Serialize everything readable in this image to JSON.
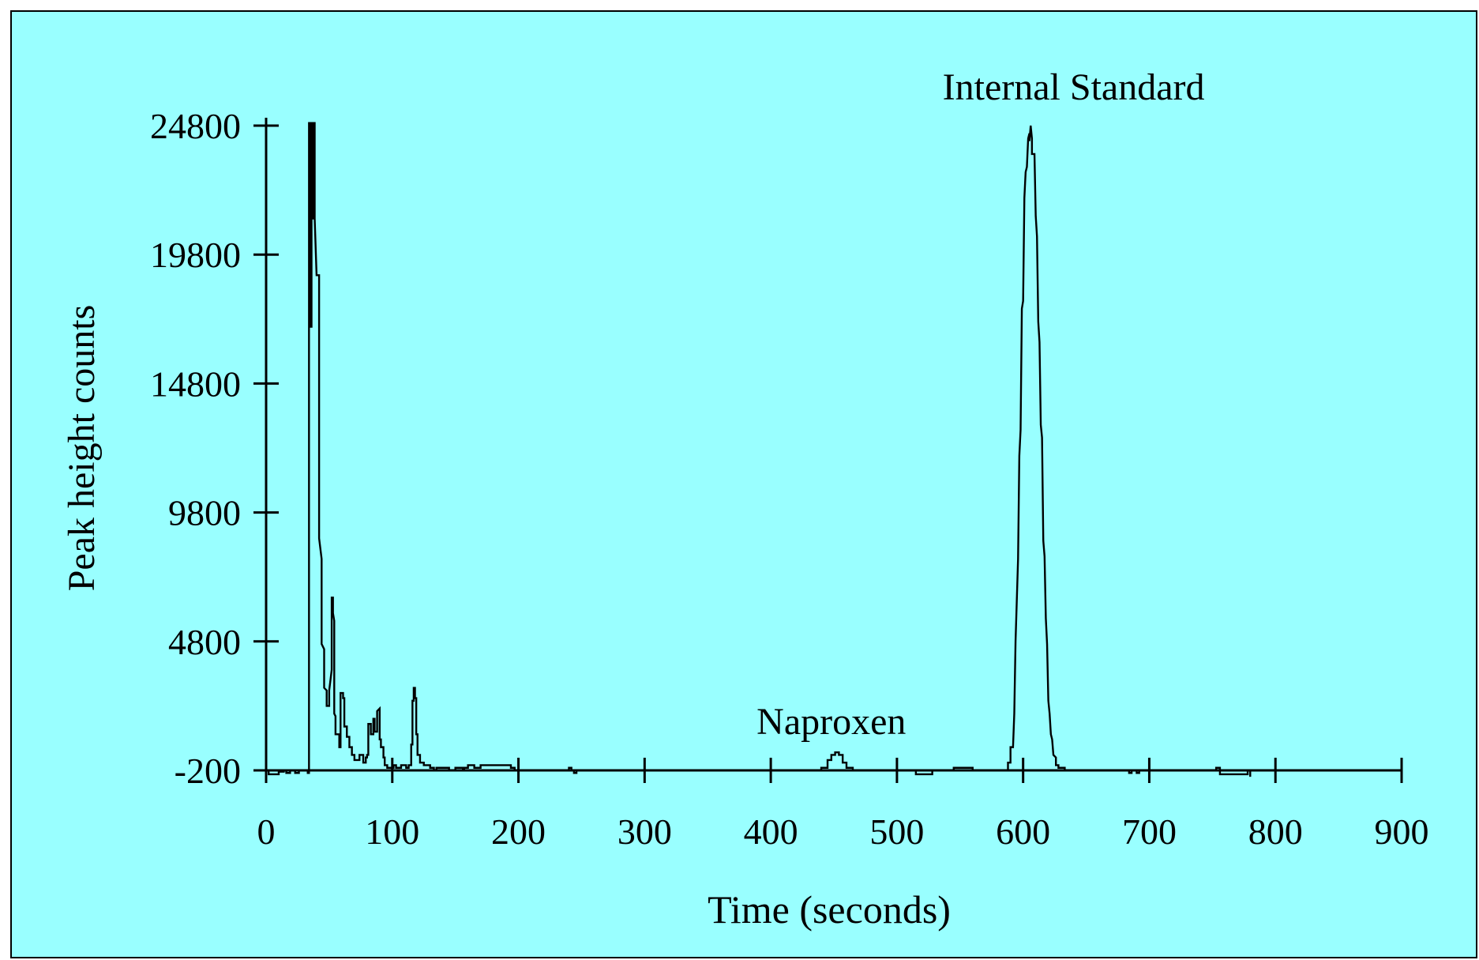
{
  "colors": {
    "background": "#99ffff",
    "line": "#000000",
    "frame": "#000000"
  },
  "chart_data": {
    "type": "line",
    "title": "",
    "xlabel": "Time (seconds)",
    "ylabel": "Peak height counts",
    "xlim": [
      0,
      900
    ],
    "ylim": [
      -200,
      24800
    ],
    "x_ticks": [
      0,
      100,
      200,
      300,
      400,
      500,
      600,
      700,
      800,
      900
    ],
    "y_ticks": [
      -200,
      4800,
      9800,
      14800,
      19800,
      24800
    ],
    "grid": false,
    "legend": "none",
    "annotations": [
      {
        "text": "Internal Standard",
        "x": 640,
        "y": 26300
      },
      {
        "text": "Naproxen",
        "x": 448,
        "y": 1700
      }
    ],
    "series": [
      {
        "values": [
          [
            0,
            -200
          ],
          [
            2,
            -200
          ],
          [
            2,
            -350
          ],
          [
            10,
            -350
          ],
          [
            10,
            -250
          ],
          [
            14,
            -250
          ],
          [
            14,
            -200
          ],
          [
            16,
            -200
          ],
          [
            16,
            -300
          ],
          [
            19,
            -300
          ],
          [
            19,
            -200
          ],
          [
            23,
            -200
          ],
          [
            23,
            -300
          ],
          [
            26,
            -300
          ],
          [
            26,
            -200
          ],
          [
            33,
            -200
          ],
          [
            33,
            -300
          ],
          [
            34,
            -300
          ],
          [
            34,
            -150
          ],
          [
            34,
            24900
          ],
          [
            35,
            24900
          ],
          [
            35,
            17000
          ],
          [
            36,
            17000
          ],
          [
            36,
            24900
          ],
          [
            37,
            24900
          ],
          [
            37,
            21200
          ],
          [
            38,
            21200
          ],
          [
            38,
            24900
          ],
          [
            38.5,
            24900
          ],
          [
            38.5,
            21200
          ],
          [
            40,
            19000
          ],
          [
            42,
            19000
          ],
          [
            42,
            8800
          ],
          [
            44,
            8000
          ],
          [
            44,
            4700
          ],
          [
            46,
            4500
          ],
          [
            46,
            3000
          ],
          [
            48,
            2900
          ],
          [
            48,
            2300
          ],
          [
            50,
            2300
          ],
          [
            50,
            2900
          ],
          [
            52,
            3700
          ],
          [
            52,
            6500
          ],
          [
            53,
            6500
          ],
          [
            53,
            5900
          ],
          [
            54,
            5600
          ],
          [
            54,
            2000
          ],
          [
            55,
            1900
          ],
          [
            55,
            1200
          ],
          [
            58,
            1200
          ],
          [
            58,
            700
          ],
          [
            59,
            700
          ],
          [
            59,
            2800
          ],
          [
            61,
            2800
          ],
          [
            61,
            2600
          ],
          [
            62,
            2600
          ],
          [
            62,
            1500
          ],
          [
            64,
            1500
          ],
          [
            64,
            1100
          ],
          [
            66,
            1100
          ],
          [
            66,
            700
          ],
          [
            68,
            700
          ],
          [
            68,
            400
          ],
          [
            70,
            400
          ],
          [
            70,
            200
          ],
          [
            74,
            200
          ],
          [
            74,
            400
          ],
          [
            77,
            400
          ],
          [
            77,
            100
          ],
          [
            79,
            100
          ],
          [
            79,
            300
          ],
          [
            80,
            300
          ],
          [
            80,
            400
          ],
          [
            81,
            400
          ],
          [
            81,
            1600
          ],
          [
            83,
            1600
          ],
          [
            83,
            1200
          ],
          [
            85,
            1200
          ],
          [
            85,
            1800
          ],
          [
            86,
            1800
          ],
          [
            86,
            1300
          ],
          [
            88,
            1300
          ],
          [
            88,
            2100
          ],
          [
            90,
            2200
          ],
          [
            90,
            1000
          ],
          [
            91,
            1000
          ],
          [
            91,
            700
          ],
          [
            93,
            700
          ],
          [
            93,
            300
          ],
          [
            94,
            300
          ],
          [
            94,
            0
          ],
          [
            96,
            0
          ],
          [
            96,
            -100
          ],
          [
            101,
            -100
          ],
          [
            101,
            0
          ],
          [
            103,
            0
          ],
          [
            103,
            -100
          ],
          [
            107,
            -100
          ],
          [
            107,
            0
          ],
          [
            111,
            0
          ],
          [
            111,
            -100
          ],
          [
            113,
            -100
          ],
          [
            113,
            0
          ],
          [
            115,
            0
          ],
          [
            115,
            800
          ],
          [
            116,
            800
          ],
          [
            116,
            2500
          ],
          [
            117,
            2500
          ],
          [
            117,
            3000
          ],
          [
            118,
            3000
          ],
          [
            118,
            2600
          ],
          [
            119,
            2600
          ],
          [
            119,
            1200
          ],
          [
            120,
            1200
          ],
          [
            120,
            400
          ],
          [
            122,
            400
          ],
          [
            122,
            100
          ],
          [
            125,
            100
          ],
          [
            125,
            0
          ],
          [
            130,
            0
          ],
          [
            130,
            -100
          ],
          [
            133,
            -100
          ],
          [
            133,
            -200
          ],
          [
            135,
            -200
          ],
          [
            135,
            -100
          ],
          [
            145,
            -100
          ],
          [
            145,
            -200
          ],
          [
            150,
            -200
          ],
          [
            150,
            -100
          ],
          [
            156,
            -100
          ],
          [
            156,
            -200
          ],
          [
            157,
            -200
          ],
          [
            157,
            -100
          ],
          [
            160,
            -100
          ],
          [
            160,
            0
          ],
          [
            165,
            0
          ],
          [
            165,
            -100
          ],
          [
            170,
            -100
          ],
          [
            170,
            0
          ],
          [
            194,
            0
          ],
          [
            194,
            -100
          ],
          [
            197,
            -100
          ],
          [
            197,
            -200
          ],
          [
            240,
            -200
          ],
          [
            240,
            -100
          ],
          [
            242,
            -100
          ],
          [
            242,
            -200
          ],
          [
            244,
            -200
          ],
          [
            244,
            -300
          ],
          [
            246,
            -300
          ],
          [
            246,
            -200
          ],
          [
            440,
            -200
          ],
          [
            440,
            -100
          ],
          [
            445,
            -100
          ],
          [
            445,
            200
          ],
          [
            448,
            200
          ],
          [
            448,
            400
          ],
          [
            451,
            400
          ],
          [
            451,
            500
          ],
          [
            454,
            500
          ],
          [
            454,
            400
          ],
          [
            457,
            400
          ],
          [
            457,
            100
          ],
          [
            460,
            100
          ],
          [
            460,
            -100
          ],
          [
            465,
            -100
          ],
          [
            465,
            -200
          ],
          [
            515,
            -200
          ],
          [
            515,
            -350
          ],
          [
            528,
            -350
          ],
          [
            528,
            -200
          ],
          [
            545,
            -200
          ],
          [
            545,
            -100
          ],
          [
            560,
            -100
          ],
          [
            560,
            -200
          ],
          [
            588,
            -200
          ],
          [
            588,
            100
          ],
          [
            590,
            100
          ],
          [
            590,
            700
          ],
          [
            592,
            700
          ],
          [
            593,
            2000
          ],
          [
            594,
            4800
          ],
          [
            596,
            8000
          ],
          [
            597,
            12000
          ],
          [
            598,
            13000
          ],
          [
            599,
            17700
          ],
          [
            600,
            18000
          ],
          [
            601,
            22000
          ],
          [
            602,
            23000
          ],
          [
            603,
            23200
          ],
          [
            604,
            24300
          ],
          [
            605,
            24500
          ],
          [
            605,
            24200
          ],
          [
            606,
            24800
          ],
          [
            607,
            24300
          ],
          [
            607,
            23700
          ],
          [
            609,
            23700
          ],
          [
            610,
            21300
          ],
          [
            611,
            20500
          ],
          [
            612,
            17200
          ],
          [
            613,
            16400
          ],
          [
            614,
            13200
          ],
          [
            615,
            12700
          ],
          [
            616,
            8700
          ],
          [
            617,
            8100
          ],
          [
            618,
            5700
          ],
          [
            619,
            4700
          ],
          [
            620,
            2500
          ],
          [
            621,
            2000
          ],
          [
            622,
            1200
          ],
          [
            623,
            1000
          ],
          [
            624,
            400
          ],
          [
            626,
            300
          ],
          [
            626,
            0
          ],
          [
            628,
            0
          ],
          [
            628,
            -100
          ],
          [
            633,
            -100
          ],
          [
            633,
            -200
          ],
          [
            684,
            -200
          ],
          [
            684,
            -300
          ],
          [
            686,
            -300
          ],
          [
            686,
            -200
          ],
          [
            690,
            -200
          ],
          [
            690,
            -300
          ],
          [
            692,
            -300
          ],
          [
            692,
            -200
          ],
          [
            753,
            -200
          ],
          [
            753,
            -100
          ],
          [
            756,
            -100
          ],
          [
            756,
            -350
          ],
          [
            778,
            -350
          ],
          [
            778,
            -200
          ],
          [
            780,
            -200
          ],
          [
            780,
            -450
          ]
        ]
      }
    ]
  }
}
